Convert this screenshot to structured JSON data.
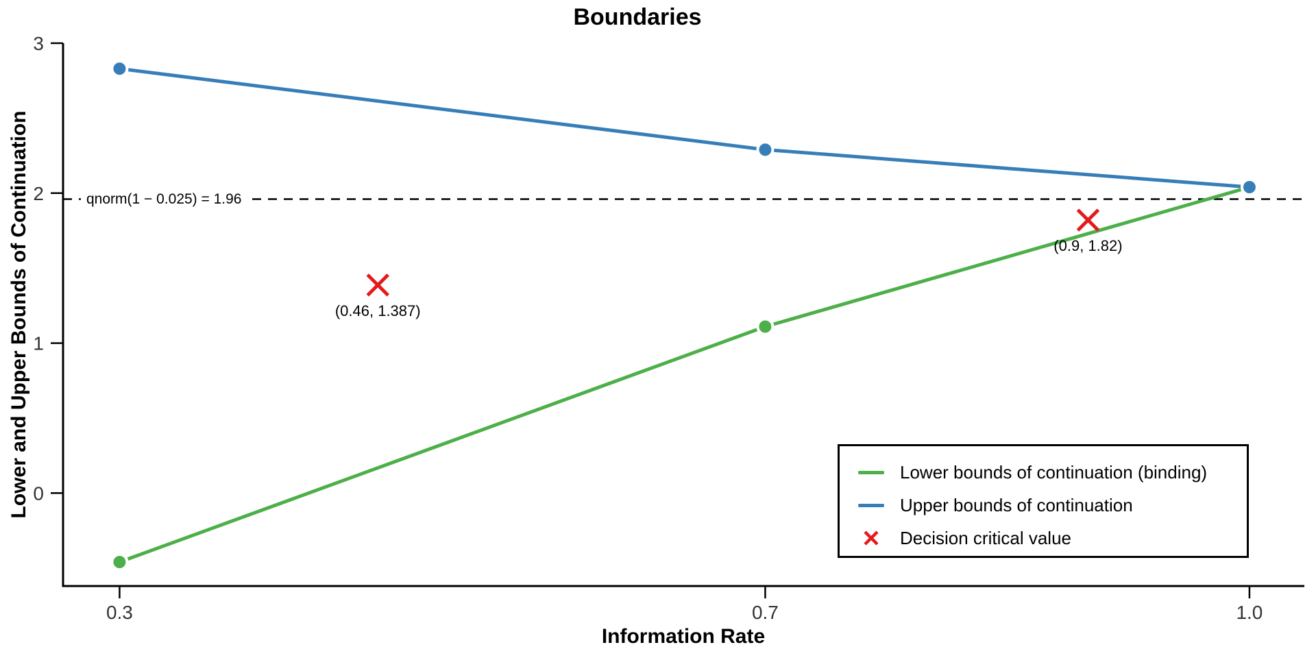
{
  "chart_data": {
    "type": "line",
    "title": "Boundaries",
    "xlabel": "Information Rate",
    "ylabel": "Lower and Upper Bounds of Continuation",
    "xlim": [
      0.265,
      1.034
    ],
    "ylim": [
      -0.62,
      3.0
    ],
    "grid": false,
    "x_ticks": [
      0.3,
      0.7,
      1.0
    ],
    "x_tick_labels": [
      "0.3",
      "0.7",
      "1.0"
    ],
    "y_ticks": [
      0,
      1,
      2,
      3
    ],
    "y_tick_labels": [
      "0",
      "1",
      "2",
      "3"
    ],
    "series": [
      {
        "name": "Lower bounds of continuation (binding)",
        "color": "#4daf4a",
        "marker": "circle",
        "x": [
          0.3,
          0.7,
          1.0
        ],
        "y": [
          -0.46,
          1.11,
          2.04
        ]
      },
      {
        "name": "Upper bounds of continuation",
        "color": "#377eb8",
        "marker": "circle",
        "x": [
          0.3,
          0.7,
          1.0
        ],
        "y": [
          2.83,
          2.29,
          2.04
        ]
      }
    ],
    "decision_points": {
      "name": "Decision critical value",
      "color": "#e41a1c",
      "marker": "x",
      "points": [
        {
          "x": 0.46,
          "y": 1.387,
          "label": "(0.46, 1.387)"
        },
        {
          "x": 0.9,
          "y": 1.82,
          "label": "(0.9, 1.82)"
        }
      ]
    },
    "reference_line": {
      "y": 1.96,
      "label": "qnorm(1 − 0.025) = 1.96",
      "style": "dashed",
      "color": "#000000"
    },
    "legend_position": "bottom-right"
  },
  "style_colors": {
    "axis": "#000000",
    "tick_label": "#333333",
    "background": "#ffffff"
  }
}
